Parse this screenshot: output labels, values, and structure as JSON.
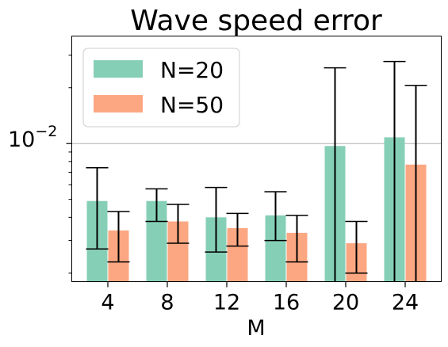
{
  "chart_data": {
    "type": "bar",
    "title": "Wave speed error",
    "xlabel": "M",
    "ylabel": "",
    "yscale": "log",
    "ylim": [
      0.0018,
      0.038
    ],
    "ytick_label": {
      "base": "10",
      "exp": "−2",
      "value": 0.01
    },
    "grid": "horizontal major only",
    "legend_position": "upper-left",
    "categories": [
      "4",
      "8",
      "12",
      "16",
      "20",
      "24"
    ],
    "series": [
      {
        "name": "N=20",
        "color": "#86cfb7",
        "values": [
          0.0049,
          0.0049,
          0.004,
          0.0041,
          0.0097,
          0.0108
        ],
        "err_low": [
          0.0027,
          0.0038,
          0.0026,
          0.003,
          0.0018,
          0.0018
        ],
        "err_high": [
          0.0074,
          0.0057,
          0.0058,
          0.0055,
          0.0256,
          0.0277
        ]
      },
      {
        "name": "N=50",
        "color": "#fca782",
        "values": [
          0.0034,
          0.0038,
          0.0035,
          0.0033,
          0.0029,
          0.0077
        ],
        "err_low": [
          0.0023,
          0.0029,
          0.0028,
          0.0023,
          0.002,
          0.0018
        ],
        "err_high": [
          0.0043,
          0.0047,
          0.0042,
          0.0041,
          0.0038,
          0.0206
        ]
      }
    ]
  }
}
